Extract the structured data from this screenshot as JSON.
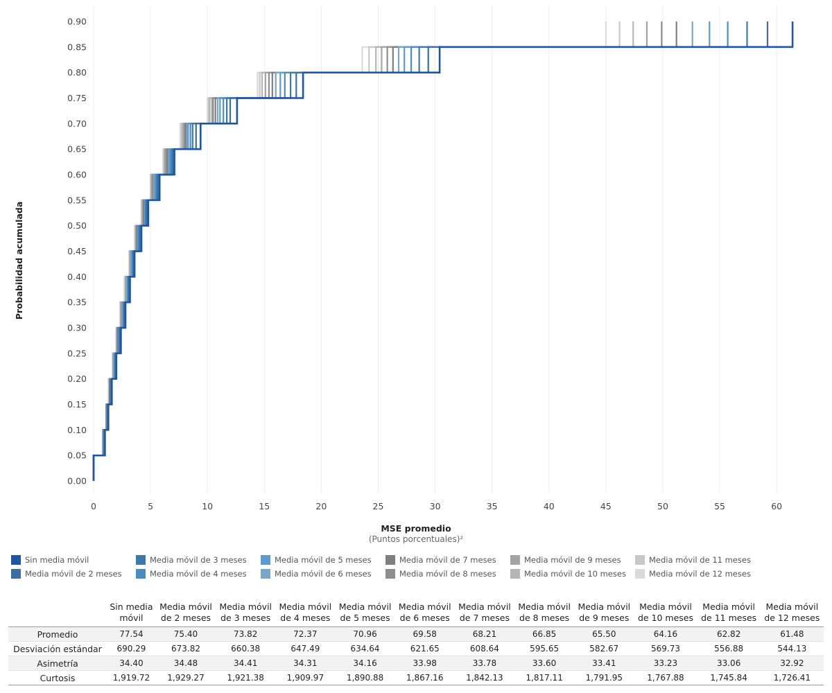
{
  "chart_data": {
    "type": "line",
    "subtype": "step-ecdf",
    "xlabel": "MSE promedio",
    "xlabel_sub": "(Puntos porcentuales)²",
    "ylabel": "Probabilidad acumulada",
    "xlim": [
      0,
      62
    ],
    "ylim": [
      0,
      0.9
    ],
    "x_ticks": [
      "0",
      "5",
      "10",
      "15",
      "20",
      "25",
      "30",
      "35",
      "40",
      "45",
      "50",
      "55",
      "60"
    ],
    "y_ticks": [
      "0.00",
      "0.05",
      "0.10",
      "0.15",
      "0.20",
      "0.25",
      "0.30",
      "0.35",
      "0.40",
      "0.45",
      "0.50",
      "0.55",
      "0.60",
      "0.65",
      "0.70",
      "0.75",
      "0.80",
      "0.85",
      "0.90"
    ],
    "grid": "vertical",
    "legend_position": "bottom",
    "y_levels": [
      0.05,
      0.1,
      0.15,
      0.2,
      0.25,
      0.3,
      0.35,
      0.4,
      0.45,
      0.5,
      0.55,
      0.6,
      0.65,
      0.7,
      0.75,
      0.8,
      0.85,
      0.9
    ],
    "series": [
      {
        "name": "Sin media móvil",
        "color": "#1f56a3",
        "x": [
          0.0,
          1.0,
          1.3,
          1.6,
          2.0,
          2.4,
          2.8,
          3.2,
          3.6,
          4.2,
          4.8,
          5.8,
          7.1,
          9.4,
          12.6,
          18.4,
          30.4,
          61.4
        ]
      },
      {
        "name": "Media móvil de 2 meses",
        "color": "#3a6ea5",
        "x": [
          0.0,
          1.0,
          1.3,
          1.6,
          2.0,
          2.3,
          2.7,
          3.1,
          3.5,
          4.1,
          4.7,
          5.7,
          7.0,
          9.0,
          12.0,
          17.8,
          29.4,
          59.2
        ]
      },
      {
        "name": "Media móvil de 3 meses",
        "color": "#3d78ac",
        "x": [
          0.0,
          0.9,
          1.2,
          1.5,
          1.9,
          2.3,
          2.7,
          3.1,
          3.5,
          4.0,
          4.6,
          5.6,
          6.9,
          8.7,
          11.7,
          17.3,
          28.6,
          57.4
        ]
      },
      {
        "name": "Media móvil de 4 meses",
        "color": "#4a8cc4",
        "x": [
          0.0,
          0.9,
          1.2,
          1.5,
          1.9,
          2.2,
          2.6,
          3.0,
          3.4,
          4.0,
          4.6,
          5.5,
          6.8,
          8.5,
          11.4,
          16.8,
          27.9,
          55.7
        ]
      },
      {
        "name": "Media móvil de 5 meses",
        "color": "#5c9ad0",
        "x": [
          0.0,
          0.9,
          1.2,
          1.5,
          1.8,
          2.2,
          2.6,
          3.0,
          3.4,
          3.9,
          4.5,
          5.4,
          6.7,
          8.3,
          11.1,
          16.4,
          27.3,
          54.1
        ]
      },
      {
        "name": "Media móvil de 6 meses",
        "color": "#79a7c8",
        "x": [
          0.0,
          0.9,
          1.2,
          1.5,
          1.8,
          2.2,
          2.5,
          2.9,
          3.3,
          3.9,
          4.5,
          5.3,
          6.6,
          8.2,
          10.9,
          16.0,
          26.8,
          52.6
        ]
      },
      {
        "name": "Media móvil de 7 meses",
        "color": "#7e7e7e",
        "x": [
          0.0,
          0.9,
          1.2,
          1.4,
          1.8,
          2.1,
          2.5,
          2.9,
          3.3,
          3.8,
          4.4,
          5.3,
          6.5,
          8.1,
          10.7,
          15.7,
          26.3,
          51.2
        ]
      },
      {
        "name": "Media móvil de 8 meses",
        "color": "#8e8e8e",
        "x": [
          0.0,
          0.9,
          1.1,
          1.4,
          1.8,
          2.1,
          2.5,
          2.9,
          3.3,
          3.8,
          4.4,
          5.2,
          6.4,
          8.0,
          10.5,
          15.4,
          25.8,
          49.9
        ]
      },
      {
        "name": "Media móvil de 9 meses",
        "color": "#a3a3a3",
        "x": [
          0.0,
          0.8,
          1.1,
          1.4,
          1.7,
          2.1,
          2.4,
          2.8,
          3.2,
          3.7,
          4.3,
          5.1,
          6.3,
          7.9,
          10.4,
          15.1,
          25.3,
          48.6
        ]
      },
      {
        "name": "Media móvil de 10 meses",
        "color": "#b5b5b5",
        "x": [
          0.0,
          0.8,
          1.1,
          1.4,
          1.7,
          2.0,
          2.4,
          2.8,
          3.2,
          3.7,
          4.3,
          5.1,
          6.2,
          7.8,
          10.2,
          14.8,
          24.8,
          47.4
        ]
      },
      {
        "name": "Media móvil de 11 meses",
        "color": "#c8c8c8",
        "x": [
          0.0,
          0.8,
          1.1,
          1.4,
          1.7,
          2.0,
          2.4,
          2.8,
          3.2,
          3.7,
          4.2,
          5.0,
          6.2,
          7.7,
          10.1,
          14.6,
          24.2,
          46.2
        ]
      },
      {
        "name": "Media móvil de 12 meses",
        "color": "#dadada",
        "x": [
          0.0,
          0.8,
          1.1,
          1.3,
          1.7,
          2.0,
          2.3,
          2.7,
          3.1,
          3.6,
          4.2,
          5.0,
          6.1,
          7.6,
          10.0,
          14.4,
          23.6,
          45.0
        ]
      }
    ]
  },
  "stats_table": {
    "columns": [
      [
        "Sin media",
        "móvil"
      ],
      [
        "Media móvil",
        "de 2 meses"
      ],
      [
        "Media móvil",
        "de 3 meses"
      ],
      [
        "Media móvil",
        "de 4 meses"
      ],
      [
        "Media móvil",
        "de 5 meses"
      ],
      [
        "Media móvil",
        "de 6 meses"
      ],
      [
        "Media móvil",
        "de 7 meses"
      ],
      [
        "Media móvil",
        "de 8 meses"
      ],
      [
        "Media móvil",
        "de 9 meses"
      ],
      [
        "Media móvil",
        "de 10 meses"
      ],
      [
        "Media móvil",
        "de 11 meses"
      ],
      [
        "Media móvil",
        "de 12 meses"
      ]
    ],
    "rows": [
      {
        "label": "Promedio",
        "values": [
          "77.54",
          "75.40",
          "73.82",
          "72.37",
          "70.96",
          "69.58",
          "68.21",
          "66.85",
          "65.50",
          "64.16",
          "62.82",
          "61.48"
        ]
      },
      {
        "label": "Desviación estándar",
        "values": [
          "690.29",
          "673.82",
          "660.38",
          "647.49",
          "634.64",
          "621.65",
          "608.64",
          "595.65",
          "582.67",
          "569.73",
          "556.88",
          "544.13"
        ]
      },
      {
        "label": "Asimetría",
        "values": [
          "34.40",
          "34.48",
          "34.41",
          "34.31",
          "34.16",
          "33.98",
          "33.78",
          "33.60",
          "33.41",
          "33.23",
          "33.06",
          "32.92"
        ]
      },
      {
        "label": "Curtosis",
        "values": [
          "1,919.72",
          "1,929.27",
          "1,921.38",
          "1,909.97",
          "1,890.88",
          "1,867.16",
          "1,842.13",
          "1,817.11",
          "1,791.95",
          "1,767.88",
          "1,745.84",
          "1,726.41"
        ]
      }
    ]
  }
}
